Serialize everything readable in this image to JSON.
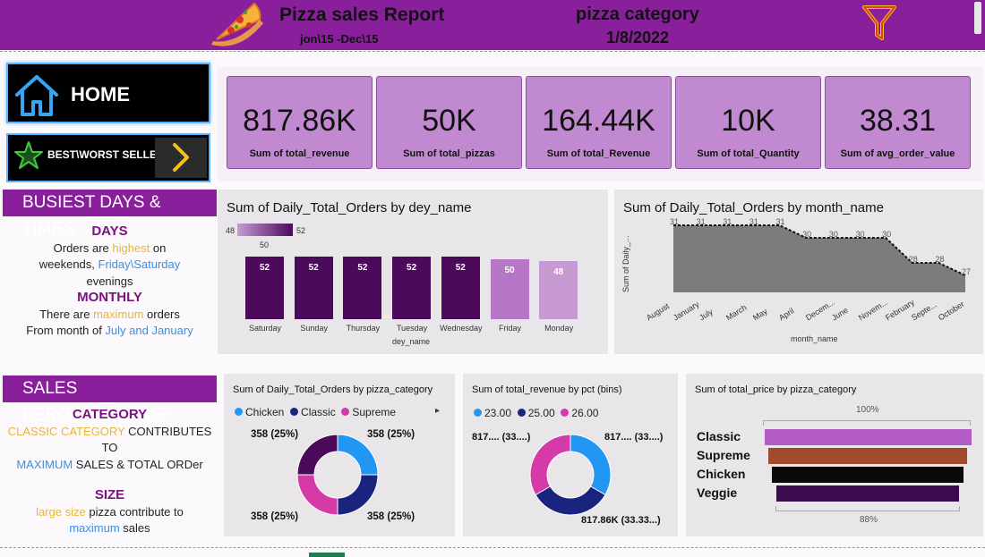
{
  "header": {
    "title": "Pizza sales Report",
    "date_range": "jon\\15  -Dec\\15",
    "category_label": "pizza category",
    "date": "1/8/2022"
  },
  "nav": {
    "home_label": "HOME",
    "best_worst_label": "BEST\\WORST SELLER"
  },
  "kpis": [
    {
      "value": "817.86K",
      "caption": "Sum of total_revenue"
    },
    {
      "value": "50K",
      "caption": "Sum of total_pizzas"
    },
    {
      "value": "164.44K",
      "caption": "Sum of total_Revenue"
    },
    {
      "value": "10K",
      "caption": "Sum of total_Quantity"
    },
    {
      "value": "38.31",
      "caption": "Sum of avg_order_value"
    }
  ],
  "busiest": {
    "title": "BUSIEST DAYS & TIMES",
    "days_heading": "DAYS",
    "days_l1_a": "Orders are ",
    "days_l1_b": "highest",
    "days_l1_c": " on",
    "days_l2_a": "weekends, ",
    "days_l2_b": "Friday\\Saturday",
    "days_l3": "evenings",
    "monthly_heading": "MONTHLY",
    "monthly_l1_a": "There are ",
    "monthly_l1_b": "maximum",
    "monthly_l1_c": " orders",
    "monthly_l2_a": "From  month of ",
    "monthly_l2_b": "July and January"
  },
  "sales": {
    "title": "SALES PEROFORMANCE",
    "cat_heading": "CATEGORY",
    "cat_l1_a": "CLASSIC CATEGORY",
    "cat_l1_b": " CONTRIBUTES TO",
    "cat_l2_a": "MAXIMUM",
    "cat_l2_b": " SALES & TOTAL ORDer",
    "size_heading": "SIZE",
    "size_l1_a": "large size",
    "size_l1_b": " pizza contribute to",
    "size_l2": "maximum",
    "size_l2_b": " sales"
  },
  "colors": {
    "header": "#8a1f9c",
    "kpi": "#c18ad0",
    "bar_dark": "#4b0a5a",
    "bar_light": "#b777c6",
    "chicken": "#2196f3",
    "classic": "#1a237e",
    "supreme": "#d63aa8",
    "veggie": "#3b0b4d"
  },
  "chart_data": [
    {
      "type": "bar",
      "title": "Sum of Daily_Total_Orders by dey_name",
      "xlabel": "dey_name",
      "categories": [
        "Saturday",
        "Sunday",
        "Thursday",
        "Tuesday",
        "Wednesday",
        "Friday",
        "Monday"
      ],
      "values": [
        52,
        52,
        52,
        52,
        52,
        50,
        48
      ],
      "color_scale": {
        "min": "48",
        "mid": "50",
        "max": "52"
      }
    },
    {
      "type": "area",
      "title": "Sum of Daily_Total_Orders by month_name",
      "xlabel": "month_name",
      "ylabel": "Sum of Daily_...",
      "categories": [
        "August",
        "January",
        "July",
        "March",
        "May",
        "April",
        "Decem...",
        "June",
        "Novem...",
        "February",
        "Septe...",
        "October"
      ],
      "values": [
        31,
        31,
        31,
        31,
        31,
        30,
        30,
        30,
        30,
        28,
        28,
        27
      ],
      "value_labels": [
        "31",
        "31",
        "31",
        "31",
        "31",
        "30",
        "30",
        "30",
        "30",
        "28",
        "28",
        "27"
      ]
    },
    {
      "type": "pie",
      "title": "Sum of Daily_Total_Orders by pizza_category",
      "legend": [
        "Chicken",
        "Classic",
        "Supreme"
      ],
      "labels": [
        "358 (25%)",
        "358 (25%)",
        "358 (25%)",
        "358 (25%)"
      ],
      "values": [
        358,
        358,
        358,
        358
      ]
    },
    {
      "type": "pie",
      "title": "Sum of total_revenue by pct (bins)",
      "legend": [
        "23.00",
        "25.00",
        "26.00"
      ],
      "labels": [
        "817.... (33....)",
        "817.... (33....)",
        "817.86K (33.33...)"
      ],
      "values": [
        33.33,
        33.33,
        33.33
      ]
    },
    {
      "type": "bar",
      "title": "Sum of total_price by pizza_category",
      "categories": [
        "Classic",
        "Supreme",
        "Chicken",
        "Veggie"
      ],
      "values": [
        100,
        96,
        93,
        88
      ],
      "top_label": "100%",
      "bottom_label": "88%"
    }
  ]
}
